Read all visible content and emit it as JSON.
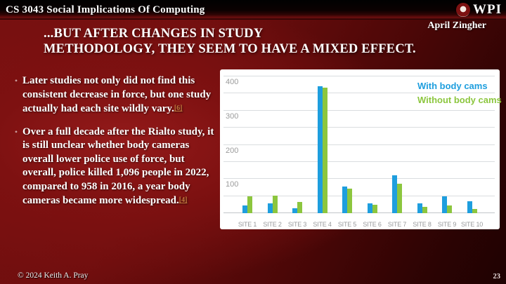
{
  "header": {
    "course_title": "CS 3043 Social Implications Of Computing",
    "logo_text": "WPI",
    "author": "April Zingher"
  },
  "slide": {
    "title_lines": [
      "...BUT AFTER CHANGES IN STUDY",
      "METHODOLOGY, THEY SEEM TO HAVE A MIXED EFFECT."
    ],
    "bullets": [
      {
        "text": "Later studies not only did not find this consistent decrease in force, but one study actually had each site wildly vary.",
        "ref": "[6]"
      },
      {
        "text": "Over a full decade after the Rialto study, it is still unclear whether body cameras overall lower police use of force, but overall, police killed 1,096 people in 2022, compared to 958 in 2016, a year body cameras became more widespread.",
        "ref": "[4]"
      }
    ]
  },
  "chart_data": {
    "type": "bar",
    "title": "",
    "xlabel": "",
    "ylabel": "",
    "categories": [
      "SITE 1",
      "SITE 2",
      "SITE 3",
      "SITE 4",
      "SITE 5",
      "SITE 6",
      "SITE 7",
      "SITE 8",
      "SITE 9",
      "SITE 10"
    ],
    "series": [
      {
        "name": "With body cams",
        "color": "#1e9ede",
        "values": [
          22,
          28,
          15,
          372,
          77,
          28,
          110,
          28,
          50,
          35
        ]
      },
      {
        "name": "Without body cams",
        "color": "#8cc63e",
        "values": [
          50,
          52,
          32,
          368,
          71,
          24,
          86,
          18,
          22,
          13
        ]
      }
    ],
    "ylim": [
      0,
      400
    ],
    "yticks": [
      100,
      200,
      300,
      400
    ],
    "grid_step": 50,
    "grid": true,
    "legend_position": "top-right",
    "background": "#ffffff"
  },
  "footer": {
    "copyright": "© 2024 Keith A. Pray",
    "page_number": "23"
  }
}
